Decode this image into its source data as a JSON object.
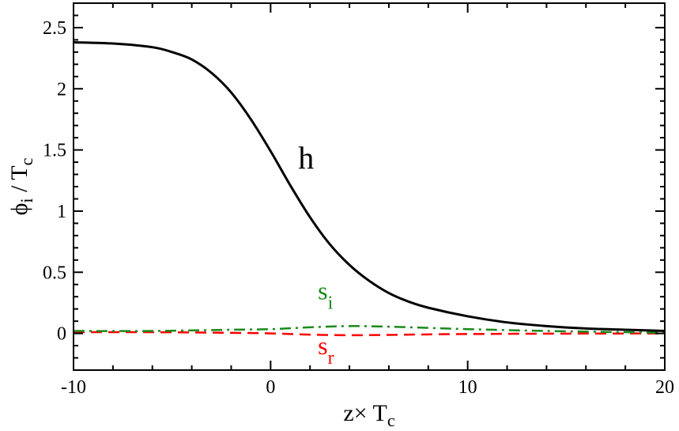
{
  "chart_data": {
    "type": "line",
    "xlabel": {
      "main": "z× T",
      "sub": "c"
    },
    "ylabel": {
      "main": "ϕ",
      "sub": "i",
      "rest": " / T",
      "sub2": "c"
    },
    "xlim": [
      -10,
      20
    ],
    "ylim": [
      -0.3,
      2.7
    ],
    "xticks": [
      -10,
      0,
      10,
      20
    ],
    "xtick_labels": [
      "-10",
      "0",
      "10",
      "20"
    ],
    "yticks": [
      0,
      0.5,
      1,
      1.5,
      2,
      2.5
    ],
    "ytick_labels": [
      "0",
      "0.5",
      "1",
      "1.5",
      "2",
      "2.5"
    ],
    "grid": false,
    "series": [
      {
        "name": "h",
        "color": "#000000",
        "style": "solid",
        "x": [
          -10,
          -8,
          -6,
          -5,
          -4,
          -3,
          -2,
          -1,
          0,
          1,
          2,
          3,
          4,
          5,
          6,
          7,
          8,
          10,
          12,
          14,
          16,
          18,
          20
        ],
        "y": [
          2.38,
          2.37,
          2.34,
          2.3,
          2.24,
          2.13,
          1.97,
          1.75,
          1.49,
          1.21,
          0.95,
          0.73,
          0.56,
          0.43,
          0.33,
          0.26,
          0.21,
          0.14,
          0.09,
          0.06,
          0.04,
          0.03,
          0.02
        ]
      },
      {
        "name": "s",
        "sub": "i",
        "color": "#1a8a1a",
        "style": "dashdot",
        "x": [
          -10,
          -6,
          -2,
          0,
          2,
          4,
          6,
          8,
          10,
          14,
          20
        ],
        "y": [
          0.02,
          0.02,
          0.03,
          0.035,
          0.05,
          0.06,
          0.055,
          0.045,
          0.035,
          0.02,
          0.005
        ]
      },
      {
        "name": "s",
        "sub": "r",
        "color": "#ff0000",
        "style": "dashed",
        "x": [
          -10,
          -6,
          -2,
          0,
          2,
          4,
          6,
          8,
          10,
          14,
          20
        ],
        "y": [
          0.01,
          0.01,
          0.005,
          0.0,
          -0.01,
          -0.015,
          -0.012,
          -0.008,
          -0.005,
          -0.002,
          0.0
        ]
      }
    ],
    "annotations": [
      {
        "series": 0,
        "text": "h",
        "x": 1.4,
        "y": 1.35
      },
      {
        "series": 1,
        "text": "s",
        "sub": "i",
        "x": 2.4,
        "y": 0.28
      },
      {
        "series": 2,
        "text": "s",
        "sub": "r",
        "x": 2.4,
        "y": -0.17
      }
    ]
  }
}
